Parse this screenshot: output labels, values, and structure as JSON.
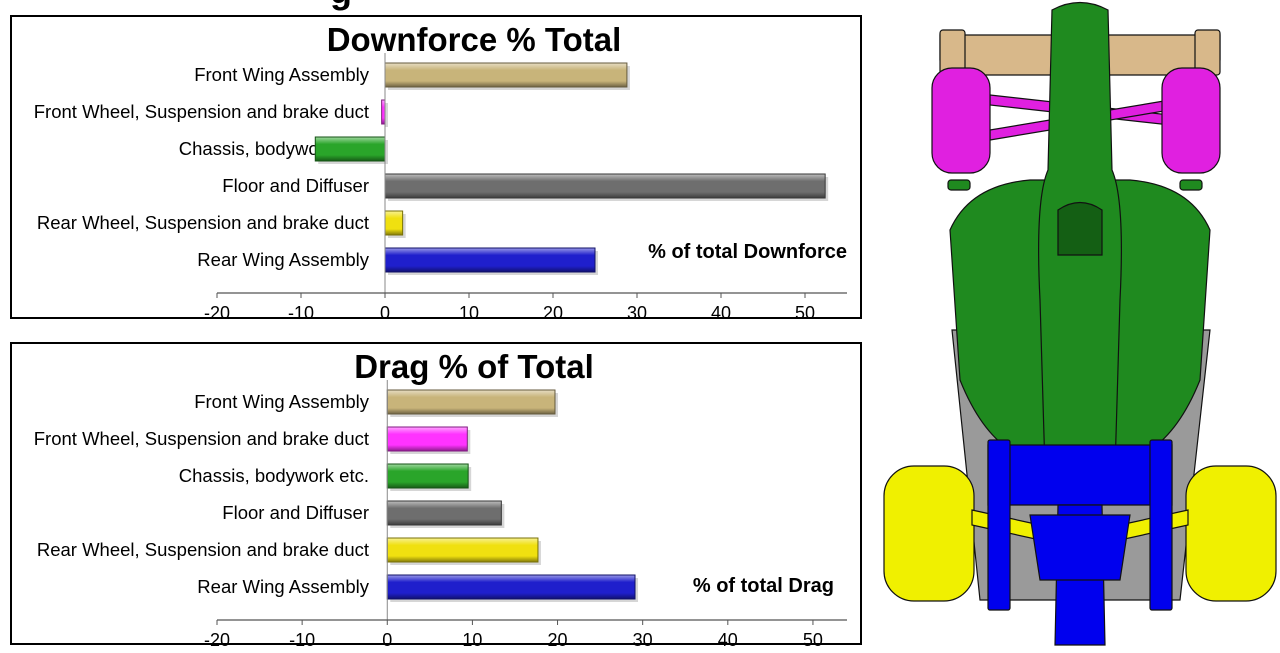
{
  "page": {
    "title_fragment": "g"
  },
  "chart_data": [
    {
      "type": "bar",
      "orientation": "horizontal",
      "title": "Downforce % Total",
      "categories": [
        "Front Wing Assembly",
        "Front Wheel, Suspension and brake duct",
        "Chassis, bodywork etc.",
        "Floor and Diffuser",
        "Rear Wheel, Suspension and brake duct",
        "Rear Wing Assembly"
      ],
      "values": [
        28.8,
        -0.4,
        -8.3,
        52.4,
        2.1,
        25.0
      ],
      "colors": [
        "#c8b47a",
        "#ff33ff",
        "#2aa52a",
        "#6e6e6e",
        "#f0e010",
        "#1f1fcc"
      ],
      "xlim": [
        -20,
        55
      ],
      "xticks": [
        -20,
        -10,
        0,
        10,
        20,
        30,
        40,
        50
      ],
      "annotation": "% of total Downforce",
      "grid": false,
      "legend": "none"
    },
    {
      "type": "bar",
      "orientation": "horizontal",
      "title": "Drag % of Total",
      "categories": [
        "Front Wing Assembly",
        "Front Wheel, Suspension and brake duct",
        "Chassis, bodywork etc.",
        "Floor and Diffuser",
        "Rear Wheel, Suspension and brake duct",
        "Rear Wing Assembly"
      ],
      "values": [
        19.7,
        9.4,
        9.5,
        13.4,
        17.7,
        29.1
      ],
      "colors": [
        "#c8b47a",
        "#ff33ff",
        "#2aa52a",
        "#6e6e6e",
        "#f0e010",
        "#1f1fcc"
      ],
      "xlim": [
        -20,
        54
      ],
      "xticks": [
        -20,
        -10,
        0,
        10,
        20,
        30,
        40,
        50
      ],
      "annotation": "% of total Drag",
      "grid": false,
      "legend": "none"
    }
  ],
  "illustration": {
    "icon": "f1-car-top-view-icon",
    "colors": {
      "body": "#1f8a1f",
      "front_wheels": "#e020e0",
      "rear_wheels": "#f0f000",
      "rear_wing": "#0000ee",
      "front_wing": "#d8b88a",
      "floor": "#9a9a9a"
    }
  }
}
